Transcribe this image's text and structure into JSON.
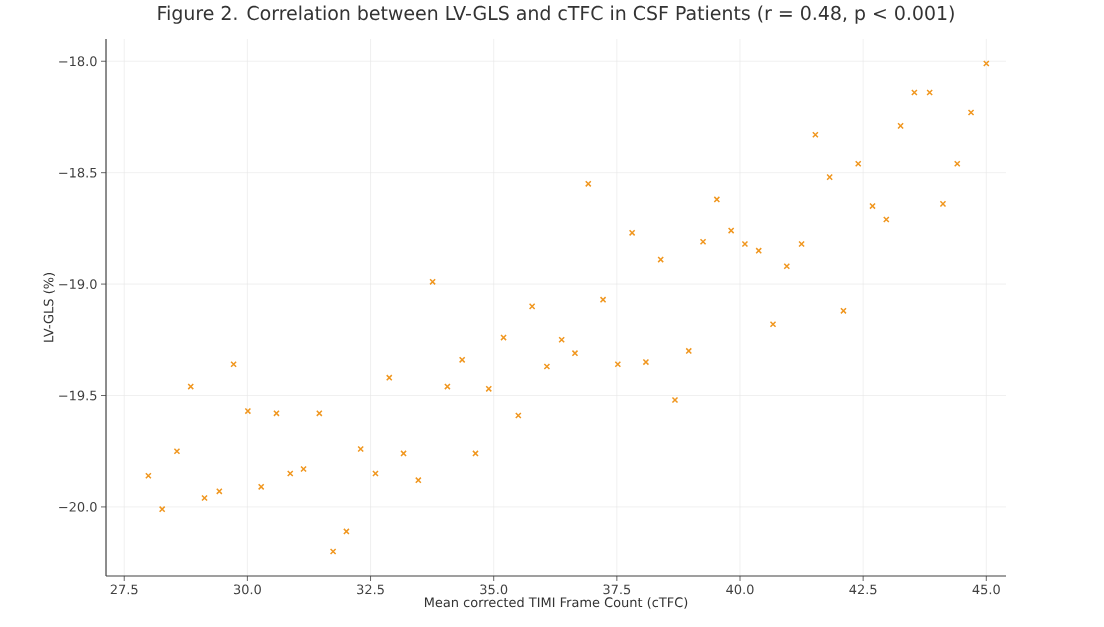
{
  "chart_data": {
    "type": "scatter",
    "title": "Figure 2. Correlation between LV-GLS and cTFC in CSF Patients (r = 0.48, p < 0.001)",
    "xlabel": "Mean corrected TIMI Frame Count (cTFC)",
    "ylabel": "LV-GLS (%)",
    "series": [
      {
        "color": "#f0961e",
        "x": [
          27.99,
          28.27,
          28.57,
          28.85,
          29.13,
          29.43,
          29.72,
          30.01,
          30.28,
          30.59,
          30.87,
          31.14,
          31.46,
          31.74,
          32.01,
          32.3,
          32.6,
          32.88,
          33.17,
          33.47,
          33.76,
          34.06,
          34.36,
          34.63,
          34.9,
          35.2,
          35.5,
          35.78,
          36.08,
          36.38,
          36.65,
          36.92,
          37.22,
          37.52,
          37.81,
          38.09,
          38.39,
          38.68,
          38.96,
          39.25,
          39.53,
          39.82,
          40.1,
          40.38,
          40.67,
          40.95,
          41.25,
          41.53,
          41.82,
          42.1,
          42.4,
          42.69,
          42.97,
          43.26,
          43.54,
          43.85,
          44.12,
          44.41,
          44.69,
          45.0
        ],
        "values": [
          -19.86,
          -20.01,
          -19.75,
          -19.46,
          -19.96,
          -19.93,
          -19.36,
          -19.57,
          -19.91,
          -19.58,
          -19.85,
          -19.83,
          -19.58,
          -20.2,
          -20.11,
          -19.74,
          -19.85,
          -19.42,
          -19.76,
          -19.88,
          -18.99,
          -19.46,
          -19.34,
          -19.76,
          -19.47,
          -19.24,
          -19.59,
          -19.1,
          -19.37,
          -19.25,
          -19.31,
          -18.55,
          -19.07,
          -19.36,
          -18.77,
          -19.35,
          -18.89,
          -19.52,
          -19.3,
          -18.81,
          -18.62,
          -18.76,
          -18.82,
          -18.85,
          -19.18,
          -18.92,
          -18.82,
          -18.33,
          -18.52,
          -19.12,
          -18.46,
          -18.65,
          -18.71,
          -18.29,
          -18.14,
          -18.14,
          -18.64,
          -18.46,
          -18.23,
          -18.01
        ]
      }
    ],
    "xlim": [
      27.13,
      45.4
    ],
    "ylim": [
      -20.31,
      -17.9
    ],
    "xticks": [
      27.5,
      {
        "value": 30,
        "label": "30.0"
      },
      32.5,
      {
        "value": 35,
        "label": "35.0"
      },
      37.5,
      {
        "value": 40,
        "label": "40.0"
      },
      42.5,
      {
        "value": 45,
        "label": "45.0"
      }
    ],
    "yticks": [
      {
        "value": -18,
        "label": "−18.0"
      },
      {
        "value": -18.5,
        "label": "−18.5"
      },
      {
        "value": -19,
        "label": "−19.0"
      },
      {
        "value": -19.5,
        "label": "−19.5"
      },
      {
        "value": -20,
        "label": "−20.0"
      }
    ],
    "grid": true,
    "marker": "cross"
  }
}
